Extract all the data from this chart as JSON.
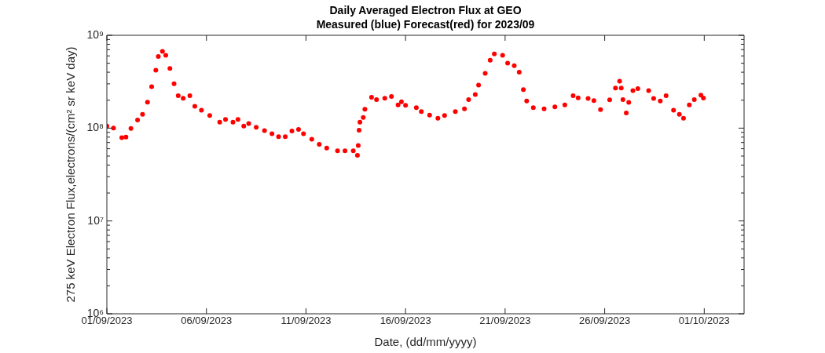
{
  "chart_data": {
    "type": "scatter",
    "title": "Daily Averaged Electron Flux at GEO",
    "subtitle": "Measured (blue) Forecast(red) for 2023/09",
    "xlabel": "Date, (dd/mm/yyyy)",
    "ylabel": "275 keV Electron Flux,electrons/(cm² sr keV day)",
    "log": "y",
    "grid": false,
    "legend": false,
    "marker": "circle",
    "xlim": [
      "2023-09-01",
      "2023-10-03"
    ],
    "xticks": [
      {
        "value": "2023-09-01",
        "label": "01/09/2023"
      },
      {
        "value": "2023-09-06",
        "label": "06/09/2023"
      },
      {
        "value": "2023-09-11",
        "label": "11/09/2023"
      },
      {
        "value": "2023-09-16",
        "label": "16/09/2023"
      },
      {
        "value": "2023-09-21",
        "label": "21/09/2023"
      },
      {
        "value": "2023-09-26",
        "label": "26/09/2023"
      },
      {
        "value": "2023-10-01",
        "label": "01/10/2023"
      }
    ],
    "ylim": [
      1000000,
      1000000000
    ],
    "yticks": [
      {
        "value": 1000000,
        "label": "10⁶"
      },
      {
        "value": 2000000,
        "label": null
      },
      {
        "value": 3000000,
        "label": null
      },
      {
        "value": 4000000,
        "label": null
      },
      {
        "value": 5000000,
        "label": null
      },
      {
        "value": 6000000,
        "label": null
      },
      {
        "value": 7000000,
        "label": null
      },
      {
        "value": 8000000,
        "label": null
      },
      {
        "value": 9000000,
        "label": null
      },
      {
        "value": 10000000,
        "label": "10⁷"
      },
      {
        "value": 20000000,
        "label": null
      },
      {
        "value": 30000000,
        "label": null
      },
      {
        "value": 40000000,
        "label": null
      },
      {
        "value": 50000000,
        "label": null
      },
      {
        "value": 60000000,
        "label": null
      },
      {
        "value": 70000000,
        "label": null
      },
      {
        "value": 80000000,
        "label": null
      },
      {
        "value": 90000000,
        "label": null
      },
      {
        "value": 100000000,
        "label": "10⁸"
      },
      {
        "value": 200000000,
        "label": null
      },
      {
        "value": 300000000,
        "label": null
      },
      {
        "value": 400000000,
        "label": null
      },
      {
        "value": 500000000,
        "label": null
      },
      {
        "value": 600000000,
        "label": null
      },
      {
        "value": 700000000,
        "label": null
      },
      {
        "value": 800000000,
        "label": null
      },
      {
        "value": 900000000,
        "label": null
      },
      {
        "value": 1000000000,
        "label": "10⁹"
      }
    ],
    "series": [
      {
        "color": "#ff0000",
        "x": [
          "2023-09-01T00:00",
          "2023-09-01T08:00",
          "2023-09-01T18:00",
          "2023-09-01T23:00",
          "2023-09-02T05:00",
          "2023-09-02T13:00",
          "2023-09-02T19:00",
          "2023-09-03T01:00",
          "2023-09-03T06:00",
          "2023-09-03T11:00",
          "2023-09-03T14:00",
          "2023-09-03T19:00",
          "2023-09-03T23:00",
          "2023-09-04T04:00",
          "2023-09-04T09:00",
          "2023-09-04T14:00",
          "2023-09-04T20:00",
          "2023-09-05T04:00",
          "2023-09-05T10:00",
          "2023-09-05T18:00",
          "2023-09-06T04:00",
          "2023-09-06T16:00",
          "2023-09-06T23:00",
          "2023-09-07T08:00",
          "2023-09-07T14:00",
          "2023-09-07T21:00",
          "2023-09-08T03:00",
          "2023-09-08T12:00",
          "2023-09-08T22:00",
          "2023-09-09T07:00",
          "2023-09-09T15:00",
          "2023-09-09T23:00",
          "2023-09-10T07:00",
          "2023-09-10T15:00",
          "2023-09-10T21:00",
          "2023-09-11T07:00",
          "2023-09-11T16:00",
          "2023-09-12T01:00",
          "2023-09-12T14:00",
          "2023-09-12T23:00",
          "2023-09-13T09:00",
          "2023-09-13T14:00",
          "2023-09-13T15:00",
          "2023-09-13T16:00",
          "2023-09-13T17:00",
          "2023-09-13T21:00",
          "2023-09-13T23:00",
          "2023-09-14T07:00",
          "2023-09-14T13:00",
          "2023-09-14T23:00",
          "2023-09-15T07:00",
          "2023-09-15T15:00",
          "2023-09-15T19:00",
          "2023-09-16T00:00",
          "2023-09-16T13:00",
          "2023-09-16T19:00",
          "2023-09-17T05:00",
          "2023-09-17T15:00",
          "2023-09-17T23:00",
          "2023-09-18T12:00",
          "2023-09-18T23:00",
          "2023-09-19T04:00",
          "2023-09-19T12:00",
          "2023-09-19T16:00",
          "2023-09-20T00:00",
          "2023-09-20T06:00",
          "2023-09-20T11:00",
          "2023-09-20T21:00",
          "2023-09-21T03:00",
          "2023-09-21T11:00",
          "2023-09-21T17:00",
          "2023-09-21T22:00",
          "2023-09-22T02:00",
          "2023-09-22T10:00",
          "2023-09-22T23:00",
          "2023-09-23T12:00",
          "2023-09-24T00:00",
          "2023-09-24T10:00",
          "2023-09-24T16:00",
          "2023-09-25T04:00",
          "2023-09-25T11:00",
          "2023-09-25T19:00",
          "2023-09-26T06:00",
          "2023-09-26T13:00",
          "2023-09-26T18:00",
          "2023-09-26T20:00",
          "2023-09-26T22:00",
          "2023-09-27T02:00",
          "2023-09-27T05:00",
          "2023-09-27T10:00",
          "2023-09-27T16:00",
          "2023-09-28T05:00",
          "2023-09-28T11:00",
          "2023-09-28T19:00",
          "2023-09-29T02:00",
          "2023-09-29T11:00",
          "2023-09-29T18:00",
          "2023-09-29T23:00",
          "2023-09-30T06:00",
          "2023-09-30T12:00",
          "2023-09-30T20:00",
          "2023-09-30T23:00"
        ],
        "values": [
          105000000,
          100000000,
          79000000,
          80000000,
          99000000,
          122000000,
          141000000,
          190000000,
          280000000,
          420000000,
          590000000,
          670000000,
          610000000,
          440000000,
          300000000,
          224000000,
          210000000,
          224000000,
          172000000,
          156000000,
          137000000,
          116000000,
          124000000,
          116000000,
          124000000,
          105000000,
          112000000,
          102000000,
          94000000,
          87000000,
          81000000,
          81000000,
          93000000,
          97000000,
          87000000,
          76000000,
          67000000,
          61000000,
          57000000,
          57000000,
          57000000,
          51000000,
          65000000,
          95000000,
          116000000,
          130000000,
          160000000,
          215000000,
          203000000,
          210000000,
          219000000,
          178000000,
          192000000,
          176000000,
          166000000,
          151000000,
          138000000,
          128000000,
          137000000,
          151000000,
          161000000,
          203000000,
          230000000,
          290000000,
          390000000,
          540000000,
          630000000,
          610000000,
          500000000,
          470000000,
          400000000,
          260000000,
          196000000,
          166000000,
          161000000,
          169000000,
          178000000,
          223000000,
          212000000,
          209000000,
          198000000,
          158000000,
          202000000,
          270000000,
          320000000,
          270000000,
          203000000,
          146000000,
          189000000,
          254000000,
          266000000,
          254000000,
          209000000,
          196000000,
          223000000,
          156000000,
          141000000,
          128000000,
          178000000,
          203000000,
          227000000,
          211000000
        ]
      }
    ]
  }
}
